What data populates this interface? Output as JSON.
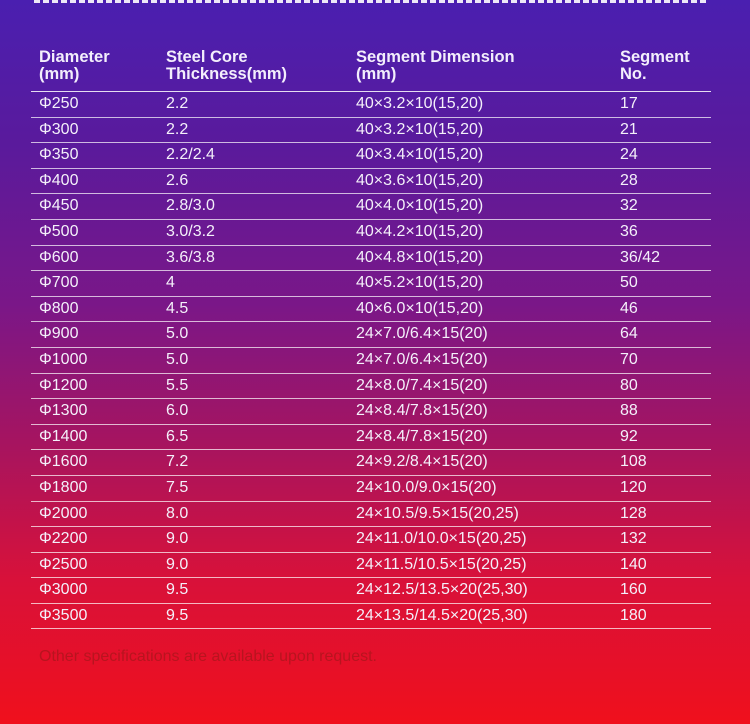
{
  "headers": {
    "diameter": "Diameter\n(mm)",
    "thickness": "Steel Core\nThickness(mm)",
    "segment_dimension": "Segment Dimension\n (mm)",
    "segment_no": "Segment\nNo."
  },
  "rows": [
    {
      "diameter": "Φ250",
      "thickness": "2.2",
      "dimension": "40×3.2×10(15,20)",
      "segments": "17"
    },
    {
      "diameter": "Φ300",
      "thickness": "2.2",
      "dimension": "40×3.2×10(15,20)",
      "segments": "21"
    },
    {
      "diameter": "Φ350",
      "thickness": "2.2/2.4",
      "dimension": "40×3.4×10(15,20)",
      "segments": "24"
    },
    {
      "diameter": "Φ400",
      "thickness": "2.6",
      "dimension": "40×3.6×10(15,20)",
      "segments": "28"
    },
    {
      "diameter": "Φ450",
      "thickness": "2.8/3.0",
      "dimension": "40×4.0×10(15,20)",
      "segments": "32"
    },
    {
      "diameter": "Φ500",
      "thickness": "3.0/3.2",
      "dimension": "40×4.2×10(15,20)",
      "segments": "36"
    },
    {
      "diameter": "Φ600",
      "thickness": "3.6/3.8",
      "dimension": "40×4.8×10(15,20)",
      "segments": "36/42"
    },
    {
      "diameter": "Φ700",
      "thickness": "4",
      "dimension": "40×5.2×10(15,20)",
      "segments": "50"
    },
    {
      "diameter": "Φ800",
      "thickness": "4.5",
      "dimension": "40×6.0×10(15,20)",
      "segments": "46"
    },
    {
      "diameter": "Φ900",
      "thickness": "5.0",
      "dimension": "24×7.0/6.4×15(20)",
      "segments": "64"
    },
    {
      "diameter": "Φ1000",
      "thickness": "5.0",
      "dimension": "24×7.0/6.4×15(20)",
      "segments": "70"
    },
    {
      "diameter": "Φ1200",
      "thickness": "5.5",
      "dimension": "24×8.0/7.4×15(20)",
      "segments": "80"
    },
    {
      "diameter": "Φ1300",
      "thickness": "6.0",
      "dimension": "24×8.4/7.8×15(20)",
      "segments": "88"
    },
    {
      "diameter": "Φ1400",
      "thickness": "6.5",
      "dimension": "24×8.4/7.8×15(20)",
      "segments": "92"
    },
    {
      "diameter": "Φ1600",
      "thickness": "7.2",
      "dimension": "24×9.2/8.4×15(20)",
      "segments": "108"
    },
    {
      "diameter": "Φ1800",
      "thickness": "7.5",
      "dimension": "24×10.0/9.0×15(20)",
      "segments": "120"
    },
    {
      "diameter": "Φ2000",
      "thickness": "8.0",
      "dimension": "24×10.5/9.5×15(20,25)",
      "segments": "128"
    },
    {
      "diameter": "Φ2200",
      "thickness": "9.0",
      "dimension": "24×11.0/10.0×15(20,25)",
      "segments": "132"
    },
    {
      "diameter": "Φ2500",
      "thickness": "9.0",
      "dimension": "24×11.5/10.5×15(20,25)",
      "segments": "140"
    },
    {
      "diameter": "Φ3000",
      "thickness": "9.5",
      "dimension": "24×12.5/13.5×20(25,30)",
      "segments": "160"
    },
    {
      "diameter": "Φ3500",
      "thickness": "9.5",
      "dimension": "24×13.5/14.5×20(25,30)",
      "segments": "180"
    }
  ],
  "note": "Other specifications are available upon request.",
  "colors": {
    "note_text": "#b8141f",
    "gradient_top": "#4a1fb0",
    "gradient_bottom": "#f0101c"
  }
}
